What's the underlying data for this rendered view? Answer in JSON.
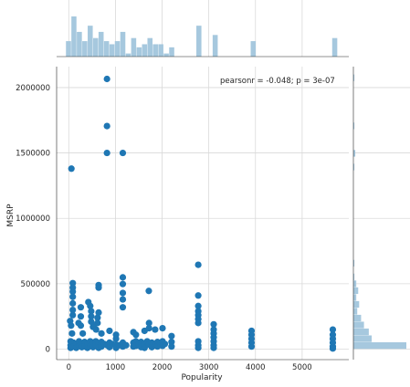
{
  "chart_data": {
    "type": "scatter",
    "xlabel": "Popularity",
    "ylabel": "MSRP",
    "annotation": "pearsonr = -0.048; p = 3e-07",
    "xlim": [
      -260,
      6000
    ],
    "ylim": [
      -80000,
      2160000
    ],
    "x_ticks": [
      0,
      1000,
      2000,
      3000,
      4000,
      5000
    ],
    "y_ticks": [
      0,
      500000,
      1000000,
      1500000,
      2000000
    ],
    "grid": true,
    "colors": {
      "points": "#1f77b4",
      "hist": "#a6c8de",
      "grid": "#d9d9d9",
      "text": "#262626"
    },
    "points": [
      [
        819,
        2065902
      ],
      [
        819,
        1705769
      ],
      [
        819,
        1500000
      ],
      [
        1158,
        1500000
      ],
      [
        57,
        1380000
      ],
      [
        2774,
        645000
      ],
      [
        1158,
        548800
      ],
      [
        1158,
        498000
      ],
      [
        1158,
        430000
      ],
      [
        1158,
        380000
      ],
      [
        1158,
        320000
      ],
      [
        1715,
        445000
      ],
      [
        2774,
        410000
      ],
      [
        2774,
        330000
      ],
      [
        2774,
        290000
      ],
      [
        2774,
        260000
      ],
      [
        2774,
        230000
      ],
      [
        2774,
        200000
      ],
      [
        86,
        505000
      ],
      [
        86,
        470000
      ],
      [
        86,
        440000
      ],
      [
        86,
        400000
      ],
      [
        86,
        350000
      ],
      [
        86,
        300000
      ],
      [
        86,
        260000
      ],
      [
        30,
        215000
      ],
      [
        50,
        180000
      ],
      [
        70,
        120000
      ],
      [
        210,
        200000
      ],
      [
        258,
        320000
      ],
      [
        258,
        250000
      ],
      [
        258,
        180000
      ],
      [
        300,
        120000
      ],
      [
        420,
        360000
      ],
      [
        460,
        330000
      ],
      [
        481,
        290000
      ],
      [
        481,
        250000
      ],
      [
        481,
        210000
      ],
      [
        520,
        170000
      ],
      [
        640,
        490000
      ],
      [
        640,
        470000
      ],
      [
        640,
        280000
      ],
      [
        617,
        240000
      ],
      [
        617,
        200000
      ],
      [
        535,
        180000
      ],
      [
        586,
        150000
      ],
      [
        700,
        120000
      ],
      [
        873,
        140000
      ],
      [
        1013,
        110000
      ],
      [
        1013,
        80000
      ],
      [
        1385,
        130000
      ],
      [
        1439,
        110000
      ],
      [
        1624,
        140000
      ],
      [
        1720,
        200000
      ],
      [
        1720,
        160000
      ],
      [
        1851,
        150000
      ],
      [
        2009,
        160000
      ],
      [
        2202,
        100000
      ],
      [
        3105,
        190000
      ],
      [
        3105,
        150000
      ],
      [
        3105,
        120000
      ],
      [
        3105,
        90000
      ],
      [
        3916,
        140000
      ],
      [
        3916,
        110000
      ],
      [
        3916,
        80000
      ],
      [
        5657,
        150000
      ],
      [
        5657,
        110000
      ],
      [
        5657,
        80000
      ],
      [
        40,
        60000
      ],
      [
        40,
        30000
      ],
      [
        40,
        10000
      ],
      [
        100,
        50000
      ],
      [
        100,
        20000
      ],
      [
        160,
        40000
      ],
      [
        160,
        10000
      ],
      [
        220,
        60000
      ],
      [
        220,
        25000
      ],
      [
        280,
        45000
      ],
      [
        280,
        15000
      ],
      [
        340,
        55000
      ],
      [
        340,
        20000
      ],
      [
        400,
        40000
      ],
      [
        400,
        10000
      ],
      [
        460,
        60000
      ],
      [
        460,
        25000
      ],
      [
        520,
        50000
      ],
      [
        520,
        15000
      ],
      [
        580,
        60000
      ],
      [
        580,
        30000
      ],
      [
        640,
        45000
      ],
      [
        640,
        10000
      ],
      [
        700,
        55000
      ],
      [
        700,
        20000
      ],
      [
        760,
        40000
      ],
      [
        820,
        30000
      ],
      [
        873,
        50000
      ],
      [
        873,
        15000
      ],
      [
        930,
        40000
      ],
      [
        1013,
        35000
      ],
      [
        1013,
        10000
      ],
      [
        1080,
        30000
      ],
      [
        1158,
        50000
      ],
      [
        1158,
        20000
      ],
      [
        1230,
        30000
      ],
      [
        1385,
        50000
      ],
      [
        1385,
        20000
      ],
      [
        1439,
        60000
      ],
      [
        1439,
        25000
      ],
      [
        1500,
        40000
      ],
      [
        1550,
        55000
      ],
      [
        1550,
        15000
      ],
      [
        1624,
        45000
      ],
      [
        1624,
        10000
      ],
      [
        1680,
        60000
      ],
      [
        1715,
        35000
      ],
      [
        1780,
        50000
      ],
      [
        1780,
        15000
      ],
      [
        1851,
        40000
      ],
      [
        1900,
        55000
      ],
      [
        1900,
        20000
      ],
      [
        1960,
        45000
      ],
      [
        2009,
        60000
      ],
      [
        2009,
        25000
      ],
      [
        2060,
        40000
      ],
      [
        2202,
        55000
      ],
      [
        2202,
        20000
      ],
      [
        2774,
        60000
      ],
      [
        2774,
        30000
      ],
      [
        2774,
        10000
      ],
      [
        3105,
        60000
      ],
      [
        3105,
        30000
      ],
      [
        3105,
        10000
      ],
      [
        3916,
        50000
      ],
      [
        3916,
        20000
      ],
      [
        5657,
        50000
      ],
      [
        5657,
        20000
      ],
      [
        5657,
        5000
      ]
    ]
  }
}
